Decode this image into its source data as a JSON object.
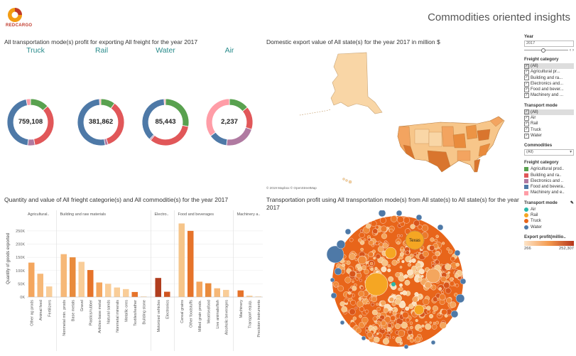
{
  "header": {
    "logo_text": "REDCARGO",
    "title": "Commodities oriented insights"
  },
  "profit_section": {
    "title": "All transportation mode(s) profit for exporting All freight for the year 2017",
    "modes": [
      {
        "label": "Truck",
        "value_label": "759,108"
      },
      {
        "label": "Rail",
        "value_label": "381,862"
      },
      {
        "label": "Water",
        "value_label": "85,443"
      },
      {
        "label": "Air",
        "value_label": "2,237"
      }
    ]
  },
  "map_section": {
    "title": "Domestic export value of All state(s) for the year 2017 in million $",
    "credit": "© 2019 Mapbox © OpenStreetMap"
  },
  "bar_section": {
    "title": "Quantity and value of All frieght categorie(s) and All commoditie(s) for the year 2017",
    "groups": [
      "Agricultural..",
      "Building and raw materials",
      "Electro..",
      "Food and beverages",
      "Machinery a.."
    ]
  },
  "bubble_section": {
    "title_line1": "Transportation profit using All transportation mode(s) from All  state(s) to All state(s) for the year",
    "title_line2": "2017",
    "highlight_label": "Texas"
  },
  "sidebar": {
    "year_label": "Year",
    "year_value": "2017",
    "freight_label": "Freight category",
    "freight_items": [
      "(All)",
      "Agricultural pr...",
      "Building and ra...",
      "Electronics and...",
      "Food and bever...",
      "Machinery and ..."
    ],
    "mode_label": "Transport mode",
    "mode_items": [
      "(All)",
      "Air",
      "Rail",
      "Truck",
      "Water"
    ],
    "commodities_label": "Commodities",
    "commodities_value": "(All)",
    "legend_freight_label": "Freight category",
    "legend_freight": [
      {
        "name": "Agricultural prod..",
        "color": "#59a14f"
      },
      {
        "name": "Building and ra..",
        "color": "#e15759"
      },
      {
        "name": "Electronics and ..",
        "color": "#b07aa1"
      },
      {
        "name": "Food and bevera..",
        "color": "#4e79a7"
      },
      {
        "name": "Machinery and e..",
        "color": "#ff9da7"
      }
    ],
    "legend_mode_label": "Transport mode",
    "legend_mode": [
      {
        "name": "Air",
        "color": "#2ab7a9"
      },
      {
        "name": "Rail",
        "color": "#f5a623"
      },
      {
        "name": "Truck",
        "color": "#e8651a"
      },
      {
        "name": "Water",
        "color": "#4e79a7"
      }
    ],
    "gradient_label": "Export profit(millio..",
    "gradient_min": "266",
    "gradient_max": "252,307"
  },
  "chart_data": [
    {
      "type": "pie",
      "name": "Truck",
      "slices": [
        {
          "label": "Agricultural products",
          "value": 0.13,
          "color": "#59a14f"
        },
        {
          "label": "Building and raw materials",
          "value": 0.34,
          "color": "#e15759"
        },
        {
          "label": "Electronics",
          "value": 0.05,
          "color": "#b07aa1"
        },
        {
          "label": "Food and beverages",
          "value": 0.45,
          "color": "#4e79a7"
        },
        {
          "label": "Machinery",
          "value": 0.03,
          "color": "#ff9da7"
        }
      ]
    },
    {
      "type": "pie",
      "name": "Rail",
      "slices": [
        {
          "label": "Agricultural products",
          "value": 0.1,
          "color": "#59a14f"
        },
        {
          "label": "Building and raw materials",
          "value": 0.35,
          "color": "#e15759"
        },
        {
          "label": "Electronics",
          "value": 0.02,
          "color": "#b07aa1"
        },
        {
          "label": "Food and beverages",
          "value": 0.52,
          "color": "#4e79a7"
        },
        {
          "label": "Machinery",
          "value": 0.01,
          "color": "#ff9da7"
        }
      ]
    },
    {
      "type": "pie",
      "name": "Water",
      "slices": [
        {
          "label": "Agricultural products",
          "value": 0.28,
          "color": "#59a14f"
        },
        {
          "label": "Building and raw materials",
          "value": 0.33,
          "color": "#e15759"
        },
        {
          "label": "Electronics",
          "value": 0.01,
          "color": "#b07aa1"
        },
        {
          "label": "Food and beverages",
          "value": 0.37,
          "color": "#4e79a7"
        },
        {
          "label": "Machinery",
          "value": 0.01,
          "color": "#ff9da7"
        }
      ]
    },
    {
      "type": "pie",
      "name": "Air",
      "slices": [
        {
          "label": "Agricultural products",
          "value": 0.14,
          "color": "#59a14f"
        },
        {
          "label": "Building and raw materials",
          "value": 0.16,
          "color": "#e15759"
        },
        {
          "label": "Electronics",
          "value": 0.22,
          "color": "#b07aa1"
        },
        {
          "label": "Food and beverages",
          "value": 0.13,
          "color": "#4e79a7"
        },
        {
          "label": "Machinery",
          "value": 0.35,
          "color": "#ff9da7"
        }
      ]
    },
    {
      "type": "bar",
      "ylabel": "Quantity of goods exported",
      "ylim": [
        0,
        290000
      ],
      "yticks": [
        "0K",
        "50K",
        "100K",
        "150K",
        "200K",
        "250K"
      ],
      "ytick_values": [
        0,
        50000,
        100000,
        150000,
        200000,
        250000
      ],
      "bars": [
        {
          "group": 0,
          "label": "Other ag prods",
          "value": 130000,
          "color": "#f4a65e"
        },
        {
          "group": 0,
          "label": "Animal feed",
          "value": 88000,
          "color": "#f6b878"
        },
        {
          "group": 0,
          "label": "Fertilizers",
          "value": 40000,
          "color": "#f9cd98"
        },
        {
          "group": 1,
          "label": "Nonmetal min. prods",
          "value": 162000,
          "color": "#f6b878"
        },
        {
          "group": 1,
          "label": "Base metals",
          "value": 150000,
          "color": "#e98b3c"
        },
        {
          "group": 1,
          "label": "Gravel",
          "value": 133000,
          "color": "#f9cd98"
        },
        {
          "group": 1,
          "label": "Plastics/rubber",
          "value": 102000,
          "color": "#e6732a"
        },
        {
          "group": 1,
          "label": "Articles-base metal",
          "value": 55000,
          "color": "#f4a65e"
        },
        {
          "group": 1,
          "label": "Natural sands",
          "value": 50000,
          "color": "#f9cd98"
        },
        {
          "group": 1,
          "label": "Nonmetal minerals",
          "value": 36000,
          "color": "#f9cd98"
        },
        {
          "group": 1,
          "label": "Metallic ores",
          "value": 30000,
          "color": "#f9cd98"
        },
        {
          "group": 1,
          "label": "Textiles/leather",
          "value": 19000,
          "color": "#e6732a"
        },
        {
          "group": 1,
          "label": "Building stone",
          "value": 2000,
          "color": "#f9cd98"
        },
        {
          "group": 2,
          "label": "Motorized vehicles",
          "value": 72000,
          "color": "#b03d1e"
        },
        {
          "group": 2,
          "label": "Electronics",
          "value": 20000,
          "color": "#d0541f"
        },
        {
          "group": 3,
          "label": "Cereal grains",
          "value": 278000,
          "color": "#f6c58a"
        },
        {
          "group": 3,
          "label": "Other foodstuffs",
          "value": 250000,
          "color": "#e6732a"
        },
        {
          "group": 3,
          "label": "Milled grain prods.",
          "value": 58000,
          "color": "#f4a65e"
        },
        {
          "group": 3,
          "label": "Meat/seafood",
          "value": 52000,
          "color": "#e98b3c"
        },
        {
          "group": 3,
          "label": "Live animals/fish",
          "value": 33000,
          "color": "#f6b878"
        },
        {
          "group": 3,
          "label": "Alcoholic beverages",
          "value": 27000,
          "color": "#f9cd98"
        },
        {
          "group": 4,
          "label": "Machinery",
          "value": 25000,
          "color": "#e6732a"
        },
        {
          "group": 4,
          "label": "Transport equip.",
          "value": 5000,
          "color": "#f9cd98"
        },
        {
          "group": 4,
          "label": "Precision instruments",
          "value": 2000,
          "color": "#f9cd98"
        }
      ]
    }
  ]
}
